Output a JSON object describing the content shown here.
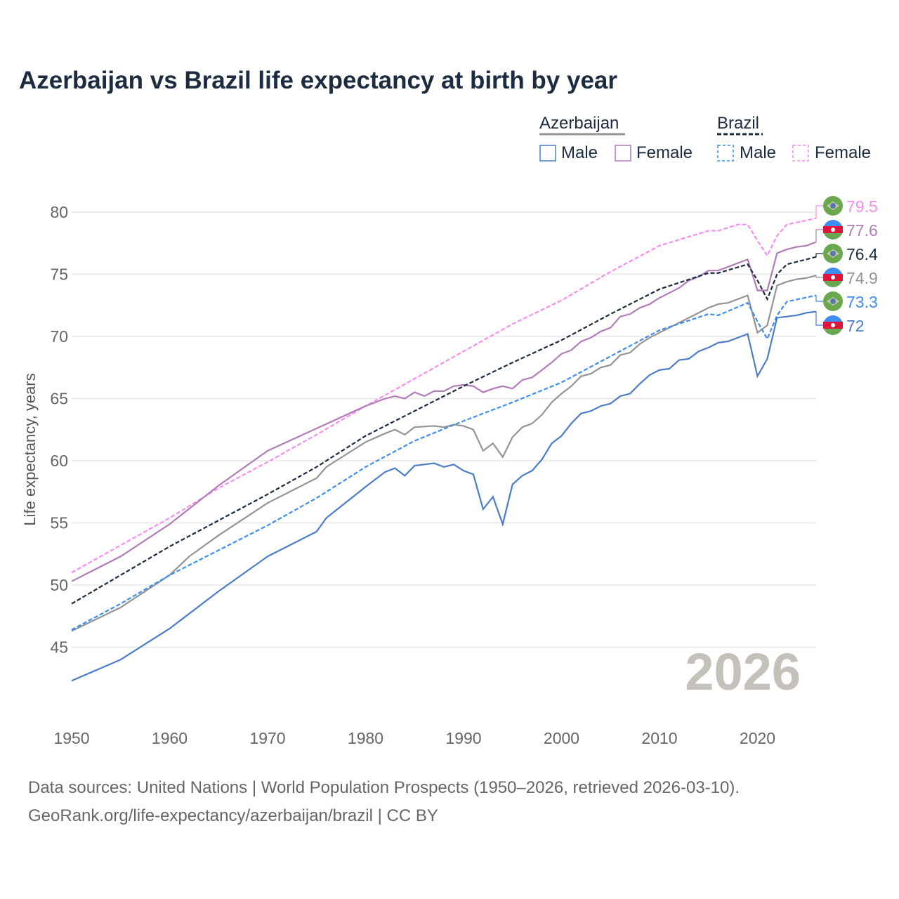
{
  "title": "Azerbaijan vs Brazil life expectancy at birth by year",
  "legend": {
    "azerbaijan": "Azerbaijan",
    "brazil": "Brazil",
    "male": "Male",
    "female": "Female"
  },
  "year_watermark": "2026",
  "source_line1": "Data sources: United Nations | World Population Prospects (1950–2026, retrieved 2026-03-10).",
  "source_line2": "GeoRank.org/life-expectancy/azerbaijan/brazil | CC BY",
  "chart_data": {
    "type": "line",
    "ylabel": "Life expectancy, years",
    "xlim": [
      1950,
      2026
    ],
    "ylim": [
      41,
      83
    ],
    "xticks": [
      1950,
      1960,
      1970,
      1980,
      1990,
      2000,
      2010,
      2020
    ],
    "yticks": [
      45,
      50,
      55,
      60,
      65,
      70,
      75,
      80
    ],
    "grid": true,
    "series": [
      {
        "name": "Brazil Female",
        "country": "Brazil",
        "label": "79.5",
        "color": "#f78cf0",
        "dash": true,
        "flag": "brazil",
        "x": [
          1950,
          1955,
          1960,
          1965,
          1970,
          1975,
          1980,
          1985,
          1990,
          1995,
          2000,
          2005,
          2010,
          2015,
          2016,
          2018,
          2019,
          2020,
          2021,
          2022,
          2023,
          2026
        ],
        "y": [
          51.0,
          53.2,
          55.4,
          57.8,
          59.9,
          62.1,
          64.4,
          66.6,
          68.8,
          71.0,
          72.9,
          75.2,
          77.3,
          78.5,
          78.5,
          79.0,
          79.0,
          77.7,
          76.5,
          78.1,
          79.0,
          79.5
        ]
      },
      {
        "name": "Azerbaijan Female",
        "country": "Azerbaijan",
        "label": "77.6",
        "color": "#b07cb8",
        "dash": false,
        "flag": "azerbaijan",
        "x": [
          1950,
          1955,
          1960,
          1965,
          1970,
          1975,
          1980,
          1982,
          1983,
          1984,
          1985,
          1986,
          1987,
          1988,
          1989,
          1990,
          1991,
          1992,
          1993,
          1994,
          1995,
          1996,
          1997,
          1998,
          1999,
          2000,
          2001,
          2002,
          2003,
          2004,
          2005,
          2006,
          2007,
          2008,
          2009,
          2010,
          2011,
          2012,
          2013,
          2014,
          2015,
          2016,
          2017,
          2018,
          2019,
          2020,
          2021,
          2022,
          2023,
          2024,
          2025,
          2026
        ],
        "y": [
          50.3,
          52.3,
          54.9,
          58.0,
          60.8,
          62.6,
          64.4,
          65.0,
          65.2,
          65.0,
          65.5,
          65.2,
          65.6,
          65.6,
          66.0,
          66.1,
          66.0,
          65.5,
          65.8,
          66.0,
          65.8,
          66.5,
          66.7,
          67.3,
          67.9,
          68.6,
          68.9,
          69.6,
          69.9,
          70.4,
          70.7,
          71.6,
          71.8,
          72.3,
          72.6,
          73.1,
          73.5,
          73.9,
          74.5,
          74.8,
          75.3,
          75.3,
          75.6,
          75.9,
          76.2,
          73.7,
          73.7,
          76.7,
          77.0,
          77.2,
          77.3,
          77.6
        ]
      },
      {
        "name": "Brazil",
        "country": "Brazil",
        "label": "76.4",
        "color": "#1c2b40",
        "dash": true,
        "flag": "brazil",
        "x": [
          1950,
          1955,
          1960,
          1965,
          1970,
          1975,
          1980,
          1985,
          1990,
          1995,
          2000,
          2005,
          2010,
          2015,
          2016,
          2019,
          2020,
          2021,
          2022,
          2023,
          2026
        ],
        "y": [
          48.5,
          50.8,
          53.1,
          55.2,
          57.3,
          59.5,
          62.0,
          64.0,
          66.0,
          67.9,
          69.7,
          71.8,
          73.8,
          75.1,
          75.1,
          75.8,
          74.5,
          73.0,
          75.0,
          75.8,
          76.4
        ]
      },
      {
        "name": "Azerbaijan",
        "country": "Azerbaijan",
        "label": "74.9",
        "color": "#949494",
        "dash": false,
        "flag": "azerbaijan",
        "x": [
          1950,
          1955,
          1960,
          1962,
          1965,
          1970,
          1975,
          1976,
          1980,
          1982,
          1983,
          1984,
          1985,
          1987,
          1988,
          1989,
          1990,
          1991,
          1992,
          1993,
          1994,
          1995,
          1996,
          1997,
          1998,
          1999,
          2000,
          2001,
          2002,
          2003,
          2004,
          2005,
          2006,
          2007,
          2008,
          2009,
          2010,
          2011,
          2012,
          2013,
          2014,
          2015,
          2016,
          2017,
          2018,
          2019,
          2020,
          2021,
          2022,
          2023,
          2024,
          2025,
          2026
        ],
        "y": [
          46.3,
          48.2,
          50.8,
          52.3,
          54.0,
          56.6,
          58.6,
          59.5,
          61.5,
          62.2,
          62.5,
          62.1,
          62.7,
          62.8,
          62.7,
          62.9,
          62.8,
          62.5,
          60.8,
          61.4,
          60.3,
          61.9,
          62.7,
          63.0,
          63.7,
          64.7,
          65.4,
          66.0,
          66.8,
          67.0,
          67.5,
          67.7,
          68.5,
          68.7,
          69.4,
          69.9,
          70.3,
          70.7,
          71.1,
          71.5,
          71.9,
          72.3,
          72.6,
          72.7,
          73.0,
          73.3,
          70.3,
          70.9,
          74.1,
          74.4,
          74.6,
          74.7,
          74.9
        ]
      },
      {
        "name": "Brazil Male",
        "country": "Brazil",
        "label": "73.3",
        "color": "#3d8cf0",
        "dash": true,
        "flag": "brazil",
        "x": [
          1950,
          1955,
          1960,
          1965,
          1970,
          1975,
          1980,
          1985,
          1990,
          1995,
          2000,
          2005,
          2010,
          2015,
          2016,
          2019,
          2020,
          2021,
          2022,
          2023,
          2026
        ],
        "y": [
          46.4,
          48.5,
          50.8,
          52.8,
          54.8,
          57.0,
          59.5,
          61.6,
          63.2,
          64.7,
          66.3,
          68.4,
          70.5,
          71.8,
          71.7,
          72.7,
          71.2,
          69.8,
          71.7,
          72.8,
          73.3
        ]
      },
      {
        "name": "Azerbaijan Male",
        "country": "Azerbaijan",
        "label": "72",
        "color": "#4a7cc8",
        "dash": false,
        "flag": "azerbaijan",
        "x": [
          1950,
          1955,
          1960,
          1965,
          1970,
          1975,
          1976,
          1980,
          1982,
          1983,
          1984,
          1985,
          1987,
          1988,
          1989,
          1990,
          1991,
          1992,
          1993,
          1994,
          1995,
          1996,
          1997,
          1998,
          1999,
          2000,
          2001,
          2002,
          2003,
          2004,
          2005,
          2006,
          2007,
          2008,
          2009,
          2010,
          2011,
          2012,
          2013,
          2014,
          2015,
          2016,
          2017,
          2018,
          2019,
          2020,
          2021,
          2022,
          2023,
          2024,
          2025,
          2026
        ],
        "y": [
          42.3,
          44.0,
          46.5,
          49.5,
          52.3,
          54.3,
          55.4,
          57.9,
          59.1,
          59.4,
          58.8,
          59.6,
          59.8,
          59.5,
          59.7,
          59.2,
          58.9,
          56.1,
          57.1,
          54.9,
          58.1,
          58.8,
          59.2,
          60.1,
          61.4,
          62.0,
          63.0,
          63.8,
          64.0,
          64.4,
          64.6,
          65.2,
          65.4,
          66.2,
          66.9,
          67.3,
          67.4,
          68.1,
          68.2,
          68.8,
          69.1,
          69.5,
          69.6,
          69.9,
          70.2,
          66.8,
          68.2,
          71.5,
          71.6,
          71.7,
          71.9,
          72.0
        ]
      }
    ]
  }
}
